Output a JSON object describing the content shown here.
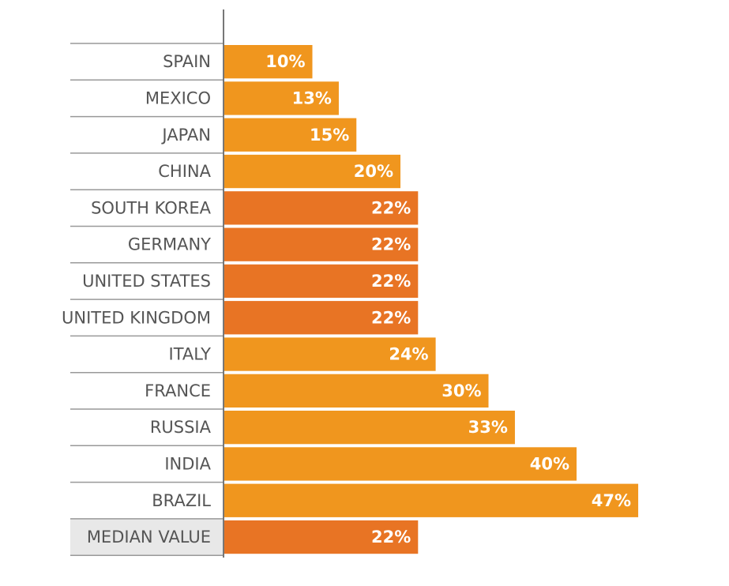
{
  "chart_data": {
    "type": "bar",
    "orientation": "horizontal",
    "title": "",
    "xlabel": "",
    "ylabel": "",
    "xlim": [
      0,
      50
    ],
    "grid": false,
    "legend": "none",
    "colors": {
      "bar": "#f0961e",
      "highlight": "#e87424",
      "median_row_bg": "#e8e8e8",
      "label_text": "#555555",
      "value_text": "#ffffff",
      "axis": "#777777",
      "row_line": "#999999"
    },
    "bars": [
      {
        "category": "SPAIN",
        "value": 10,
        "label": "10%",
        "highlight": false
      },
      {
        "category": "MEXICO",
        "value": 13,
        "label": "13%",
        "highlight": false
      },
      {
        "category": "JAPAN",
        "value": 15,
        "label": "15%",
        "highlight": false
      },
      {
        "category": "CHINA",
        "value": 20,
        "label": "20%",
        "highlight": false
      },
      {
        "category": "SOUTH KOREA",
        "value": 22,
        "label": "22%",
        "highlight": true
      },
      {
        "category": "GERMANY",
        "value": 22,
        "label": "22%",
        "highlight": true
      },
      {
        "category": "UNITED STATES",
        "value": 22,
        "label": "22%",
        "highlight": true
      },
      {
        "category": "UNITED KINGDOM",
        "value": 22,
        "label": "22%",
        "highlight": true
      },
      {
        "category": "ITALY",
        "value": 24,
        "label": "24%",
        "highlight": false
      },
      {
        "category": "FRANCE",
        "value": 30,
        "label": "30%",
        "highlight": false
      },
      {
        "category": "RUSSIA",
        "value": 33,
        "label": "33%",
        "highlight": false
      },
      {
        "category": "INDIA",
        "value": 40,
        "label": "40%",
        "highlight": false
      },
      {
        "category": "BRAZIL",
        "value": 47,
        "label": "47%",
        "highlight": false
      }
    ],
    "median": {
      "category": "MEDIAN VALUE",
      "value": 22,
      "label": "22%"
    }
  }
}
